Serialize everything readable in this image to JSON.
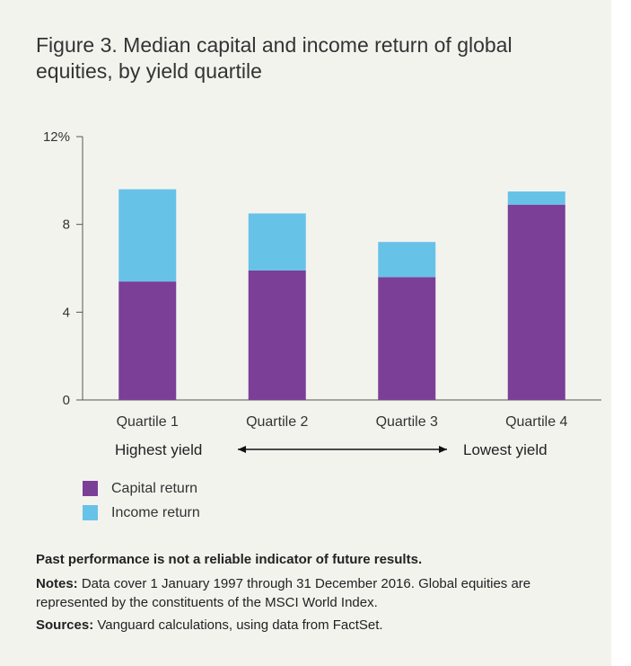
{
  "title": "Figure 3. Median capital and income return of global equities, by yield quartile",
  "chart_data": {
    "type": "bar",
    "stacked": true,
    "categories": [
      "Quartile 1",
      "Quartile 2",
      "Quartile 3",
      "Quartile 4"
    ],
    "series": [
      {
        "name": "Capital return",
        "values": [
          5.4,
          5.9,
          5.6,
          8.9
        ],
        "color": "#7b3f98"
      },
      {
        "name": "Income return",
        "values": [
          4.2,
          2.6,
          1.6,
          0.6
        ],
        "color": "#67c2e8"
      }
    ],
    "yticks": [
      "0",
      "4",
      "8",
      "12%"
    ],
    "ytick_values": [
      0,
      4,
      8,
      12
    ],
    "ylim": [
      0,
      12
    ],
    "grid": false,
    "legend_position": "bottom-left"
  },
  "yield_axis": {
    "left_label": "Highest yield",
    "right_label": "Lowest yield"
  },
  "legend": [
    {
      "label": "Capital return",
      "color": "#7b3f98"
    },
    {
      "label": "Income return",
      "color": "#67c2e8"
    }
  ],
  "footer": {
    "disclaimer": "Past performance is not a reliable indicator of future results.",
    "notes_label": "Notes:",
    "notes_text": " Data cover 1 January 1997 through 31 December 2016. Global equities are represented by the constituents of the MSCI World Index.",
    "sources_label": "Sources:",
    "sources_text": " Vanguard calculations, using data from FactSet."
  }
}
